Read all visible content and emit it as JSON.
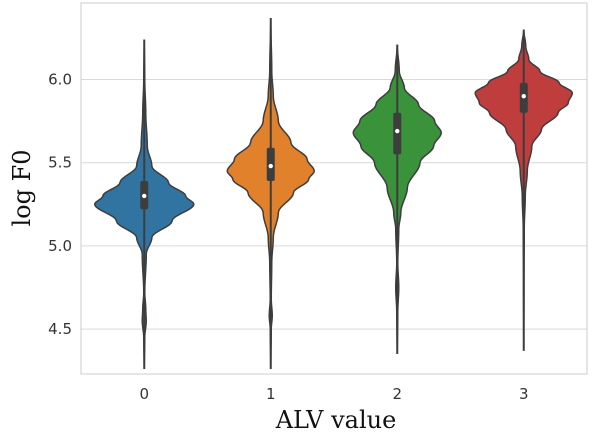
{
  "chart_data": {
    "type": "violin",
    "xlabel": "ALV value",
    "ylabel": "log F0",
    "ylim": [
      4.23,
      6.46
    ],
    "y_ticks": [
      "4.5",
      "5.0",
      "5.5",
      "6.0"
    ],
    "grid": "horizontal",
    "categories": [
      "0",
      "1",
      "2",
      "3"
    ],
    "series": [
      {
        "category": "0",
        "color": "#3274a1",
        "min": 4.26,
        "max": 6.24,
        "q1": 5.22,
        "median": 5.3,
        "q3": 5.39,
        "density": [
          [
            4.26,
            0.0
          ],
          [
            4.45,
            0.01
          ],
          [
            4.55,
            0.04
          ],
          [
            4.62,
            0.03
          ],
          [
            4.72,
            0.01
          ],
          [
            4.95,
            0.04
          ],
          [
            5.05,
            0.15
          ],
          [
            5.15,
            0.55
          ],
          [
            5.25,
            0.98
          ],
          [
            5.3,
            0.82
          ],
          [
            5.38,
            0.48
          ],
          [
            5.48,
            0.15
          ],
          [
            5.6,
            0.06
          ],
          [
            5.8,
            0.03
          ],
          [
            6.0,
            0.01
          ],
          [
            6.24,
            0.0
          ]
        ]
      },
      {
        "category": "1",
        "color": "#e1812c",
        "min": 4.26,
        "max": 6.37,
        "q1": 5.39,
        "median": 5.48,
        "q3": 5.59,
        "density": [
          [
            4.26,
            0.0
          ],
          [
            4.5,
            0.01
          ],
          [
            4.58,
            0.03
          ],
          [
            4.68,
            0.01
          ],
          [
            4.9,
            0.02
          ],
          [
            5.05,
            0.05
          ],
          [
            5.2,
            0.15
          ],
          [
            5.32,
            0.45
          ],
          [
            5.4,
            0.75
          ],
          [
            5.45,
            0.86
          ],
          [
            5.52,
            0.72
          ],
          [
            5.62,
            0.4
          ],
          [
            5.75,
            0.15
          ],
          [
            5.9,
            0.05
          ],
          [
            6.05,
            0.02
          ],
          [
            6.37,
            0.0
          ]
        ]
      },
      {
        "category": "2",
        "color": "#3a923a",
        "min": 4.35,
        "max": 6.21,
        "q1": 5.55,
        "median": 5.69,
        "q3": 5.8,
        "density": [
          [
            4.35,
            0.0
          ],
          [
            4.6,
            0.01
          ],
          [
            4.75,
            0.03
          ],
          [
            4.9,
            0.01
          ],
          [
            5.1,
            0.03
          ],
          [
            5.2,
            0.07
          ],
          [
            5.35,
            0.2
          ],
          [
            5.5,
            0.45
          ],
          [
            5.6,
            0.72
          ],
          [
            5.68,
            0.87
          ],
          [
            5.75,
            0.74
          ],
          [
            5.85,
            0.42
          ],
          [
            5.95,
            0.14
          ],
          [
            6.05,
            0.04
          ],
          [
            6.21,
            0.0
          ]
        ]
      },
      {
        "category": "3",
        "color": "#c03d3e",
        "min": 4.37,
        "max": 6.3,
        "q1": 5.8,
        "median": 5.9,
        "q3": 5.98,
        "density": [
          [
            4.37,
            0.0
          ],
          [
            4.8,
            0.005
          ],
          [
            5.1,
            0.01
          ],
          [
            5.3,
            0.03
          ],
          [
            5.45,
            0.07
          ],
          [
            5.6,
            0.16
          ],
          [
            5.7,
            0.35
          ],
          [
            5.8,
            0.68
          ],
          [
            5.86,
            0.88
          ],
          [
            5.92,
            0.96
          ],
          [
            5.98,
            0.7
          ],
          [
            6.05,
            0.32
          ],
          [
            6.12,
            0.1
          ],
          [
            6.2,
            0.04
          ],
          [
            6.3,
            0.0
          ]
        ]
      }
    ]
  }
}
